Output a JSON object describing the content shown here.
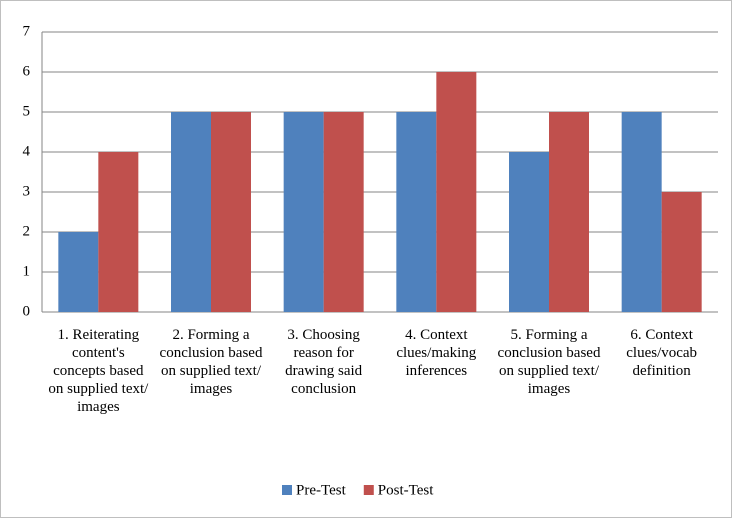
{
  "chart_data": {
    "type": "bar",
    "categories": [
      "1. Reiterating content's concepts based on supplied text/ images",
      "2. Forming a conclusion based on supplied text/ images",
      "3. Choosing reason for drawing said conclusion",
      "4. Context clues/making inferences",
      "5. Forming a conclusion based on supplied text/ images",
      "6. Context clues/vocab definition"
    ],
    "series": [
      {
        "name": "Pre-Test",
        "color": "#4f81bd",
        "values": [
          2,
          5,
          5,
          5,
          4,
          5
        ]
      },
      {
        "name": "Post-Test",
        "color": "#c0504d",
        "values": [
          4,
          5,
          5,
          6,
          5,
          3
        ]
      }
    ],
    "ylim": [
      0,
      7
    ],
    "yticks": [
      0,
      1,
      2,
      3,
      4,
      5,
      6,
      7
    ],
    "grid": true,
    "legend": "bottom"
  }
}
